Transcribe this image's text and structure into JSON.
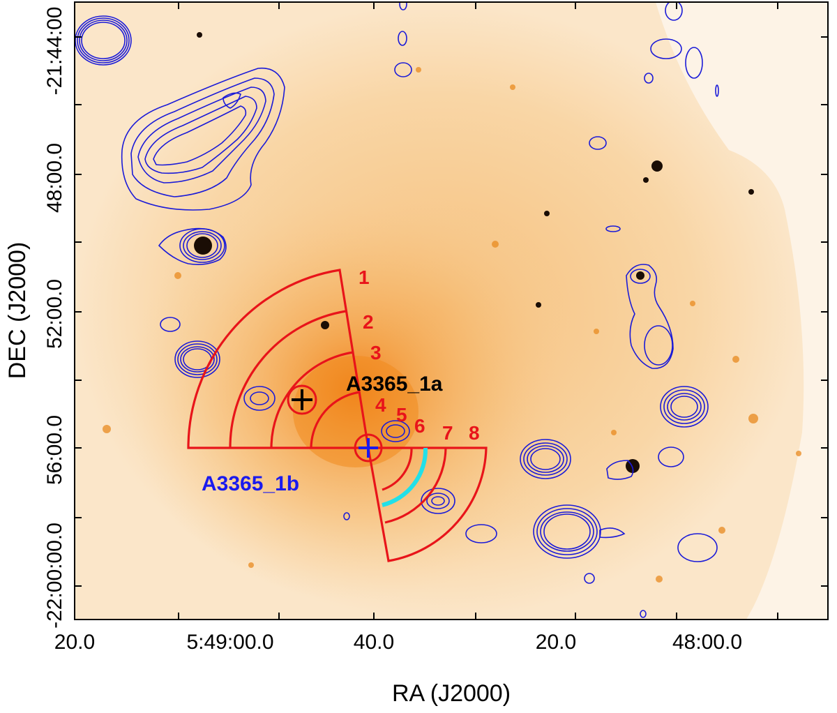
{
  "axes": {
    "x_title": "RA (J2000)",
    "y_title": "DEC (J2000)",
    "x_ticks": [
      "20.0",
      "5:49:00.0",
      "40.0",
      "20.0",
      "48:00.0"
    ],
    "y_ticks": [
      "-21:44:00",
      "48:00.0",
      "52:00.0",
      "56:00.0",
      "-22:00:00.0"
    ]
  },
  "sources": {
    "a_label": "A3365_1a",
    "b_label": "A3365_1b"
  },
  "sectors": {
    "labels": [
      "1",
      "2",
      "3",
      "4",
      "5",
      "6",
      "7",
      "8"
    ]
  },
  "colors": {
    "background_map": "#f7c98a",
    "bright_core": "#f08a1e",
    "contours": "#1a1ad8",
    "sectors": "#e8141a",
    "highlight_arc": "#22e0e8"
  }
}
